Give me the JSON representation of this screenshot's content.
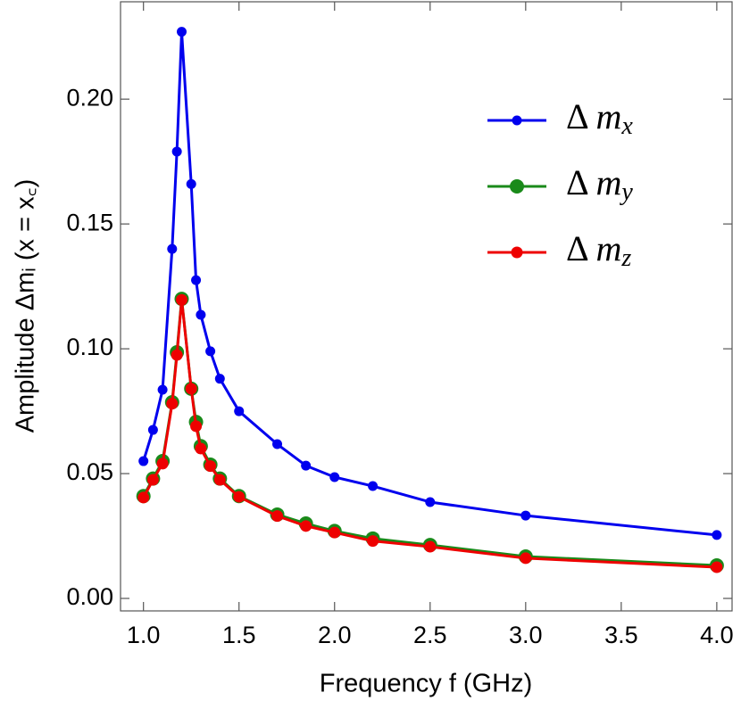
{
  "chart_data": {
    "type": "line",
    "x_label": "Frequency  f  (GHz)",
    "y_label": "Amplitude  Δmᵢ  (x = x꜀)",
    "x": [
      1.0,
      1.05,
      1.1,
      1.15,
      1.175,
      1.2,
      1.25,
      1.275,
      1.3,
      1.35,
      1.4,
      1.5,
      1.7,
      1.85,
      2.0,
      2.2,
      2.5,
      3.0,
      4.0
    ],
    "series": [
      {
        "name": "Δ mx",
        "color": "#0000ee",
        "values": [
          0.055,
          0.0675,
          0.0836,
          0.14,
          0.179,
          0.227,
          0.166,
          0.1275,
          0.1136,
          0.099,
          0.088,
          0.075,
          0.0618,
          0.0532,
          0.0486,
          0.045,
          0.0386,
          0.0332,
          0.0254
        ]
      },
      {
        "name": "Δ my",
        "color": "#1a8a1a",
        "values": [
          0.041,
          0.048,
          0.055,
          0.0786,
          0.0986,
          0.12,
          0.084,
          0.0707,
          0.061,
          0.0536,
          0.048,
          0.041,
          0.0336,
          0.03,
          0.027,
          0.024,
          0.0214,
          0.0168,
          0.0132
        ]
      },
      {
        "name": "Δ mz",
        "color": "#ee0000",
        "values": [
          0.0404,
          0.0475,
          0.054,
          0.078,
          0.0975,
          0.1196,
          0.084,
          0.069,
          0.06,
          0.053,
          0.0475,
          0.0407,
          0.033,
          0.029,
          0.0264,
          0.023,
          0.0207,
          0.0161,
          0.0125
        ]
      }
    ],
    "xlim": [
      0.88,
      4.08
    ],
    "ylim": [
      -0.005,
      0.239
    ],
    "xticks": [
      {
        "value": 1.0,
        "label": "1.0"
      },
      {
        "value": 1.5,
        "label": "1.5"
      },
      {
        "value": 2.0,
        "label": "2.0"
      },
      {
        "value": 2.5,
        "label": "2.5"
      },
      {
        "value": 3.0,
        "label": "3.0"
      },
      {
        "value": 3.5,
        "label": "3.5"
      },
      {
        "value": 4.0,
        "label": "4.0"
      }
    ],
    "yticks": [
      {
        "value": 0.0,
        "label": "0.00"
      },
      {
        "value": 0.05,
        "label": "0.05"
      },
      {
        "value": 0.1,
        "label": "0.10"
      },
      {
        "value": 0.15,
        "label": "0.15"
      },
      {
        "value": 0.2,
        "label": "0.20"
      }
    ],
    "legend": "upper right"
  }
}
